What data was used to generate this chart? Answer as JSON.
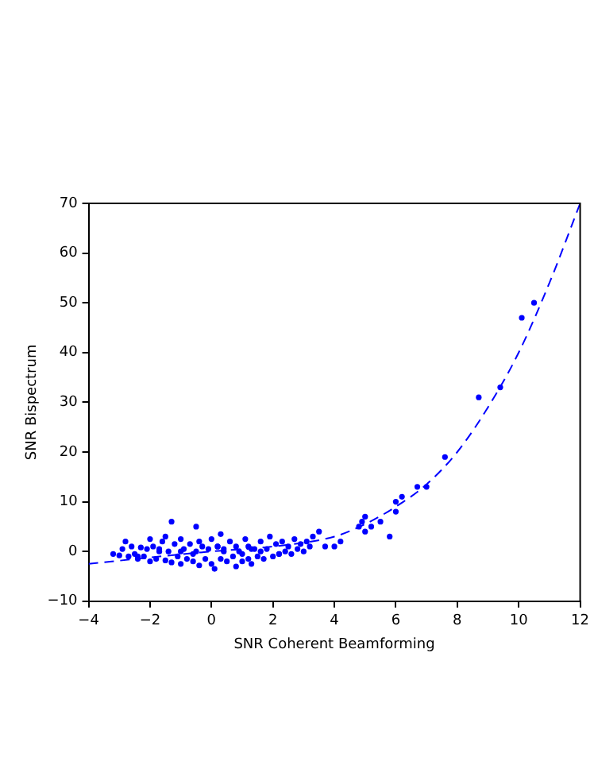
{
  "chart_data": {
    "type": "scatter",
    "xlabel": "SNR Coherent Beamforming",
    "ylabel": "SNR Bispectrum",
    "xlim": [
      -4,
      12
    ],
    "xticks": [
      -4,
      -2,
      0,
      2,
      4,
      6,
      8,
      10,
      12
    ],
    "ylim": [
      -10,
      70
    ],
    "yticks": [
      -10,
      0,
      10,
      20,
      30,
      40,
      50,
      60,
      70
    ],
    "grid": false,
    "legend": false,
    "marker": "circle",
    "series": [
      {
        "type": "scatter",
        "color": "#0000ff",
        "x": [
          -3.2,
          -3.0,
          -2.9,
          -2.8,
          -2.7,
          -2.6,
          -2.5,
          -2.4,
          -2.3,
          -2.2,
          -2.1,
          -2.0,
          -2.0,
          -1.9,
          -1.8,
          -1.7,
          -1.6,
          -1.5,
          -1.5,
          -1.4,
          -1.3,
          -1.3,
          -1.2,
          -1.1,
          -1.0,
          -1.0,
          -0.9,
          -0.8,
          -0.7,
          -0.6,
          -0.5,
          -0.5,
          -0.4,
          -0.4,
          -0.3,
          -0.2,
          -0.1,
          0.0,
          0.0,
          0.1,
          0.2,
          0.3,
          0.3,
          0.4,
          0.5,
          0.6,
          0.7,
          0.8,
          0.8,
          0.9,
          1.0,
          1.1,
          1.2,
          1.2,
          1.3,
          1.4,
          1.5,
          1.6,
          1.7,
          1.8,
          1.9,
          2.0,
          2.1,
          2.2,
          2.3,
          2.4,
          2.5,
          2.6,
          2.7,
          2.8,
          2.9,
          3.0,
          3.1,
          3.2,
          3.3,
          3.5,
          3.7,
          4.0,
          4.2,
          4.8,
          4.9,
          5.0,
          5.0,
          5.2,
          5.5,
          5.8,
          6.0,
          6.0,
          6.2,
          6.7,
          7.0,
          7.6,
          8.7,
          9.4,
          10.1,
          10.5,
          -1.7,
          -0.6,
          0.4,
          1.0,
          1.6,
          -2.4,
          2.2,
          -1.0,
          0.2,
          1.3
        ],
        "values": [
          -0.5,
          -0.8,
          0.5,
          2.0,
          -1.0,
          1.0,
          -0.5,
          -1.5,
          0.8,
          -1.0,
          0.5,
          2.5,
          -2.0,
          1.0,
          -1.5,
          0.5,
          2.0,
          -1.8,
          3.0,
          0.0,
          6.0,
          -2.2,
          1.5,
          -1.0,
          2.5,
          -2.5,
          0.5,
          -1.5,
          1.5,
          -2.0,
          5.0,
          0.0,
          -2.8,
          2.0,
          1.0,
          -1.5,
          0.5,
          -2.5,
          2.5,
          -3.5,
          1.0,
          -1.5,
          3.5,
          0.0,
          -2.0,
          2.0,
          -1.0,
          -3.0,
          1.0,
          0.0,
          -2.0,
          2.5,
          -1.5,
          1.0,
          -2.5,
          0.5,
          -1.0,
          2.0,
          -1.5,
          0.5,
          3.0,
          -1.0,
          1.5,
          -0.5,
          2.0,
          0.0,
          1.0,
          -0.5,
          2.5,
          0.5,
          1.5,
          0.0,
          2.0,
          1.0,
          3.0,
          4.0,
          1.0,
          1.0,
          2.0,
          5.0,
          6.0,
          4.0,
          7.0,
          5.0,
          6.0,
          3.0,
          8.0,
          10.0,
          11.0,
          13.0,
          13.0,
          19.0,
          31.0,
          33.0,
          47.0,
          50.0,
          0.0,
          -0.5,
          0.5,
          -0.5,
          0.0,
          -1.0,
          -0.5,
          0.0,
          1.0,
          0.5
        ]
      },
      {
        "type": "line",
        "color": "#0000ff",
        "line_style": "dashed",
        "marker": "none",
        "x": [
          -4,
          -2,
          0,
          2,
          4,
          5,
          6,
          7,
          8,
          9,
          10,
          11,
          12
        ],
        "values": [
          -2.5,
          -1.2,
          0,
          1,
          3,
          5.5,
          9,
          13.5,
          20,
          29,
          40,
          54,
          70
        ]
      }
    ]
  }
}
